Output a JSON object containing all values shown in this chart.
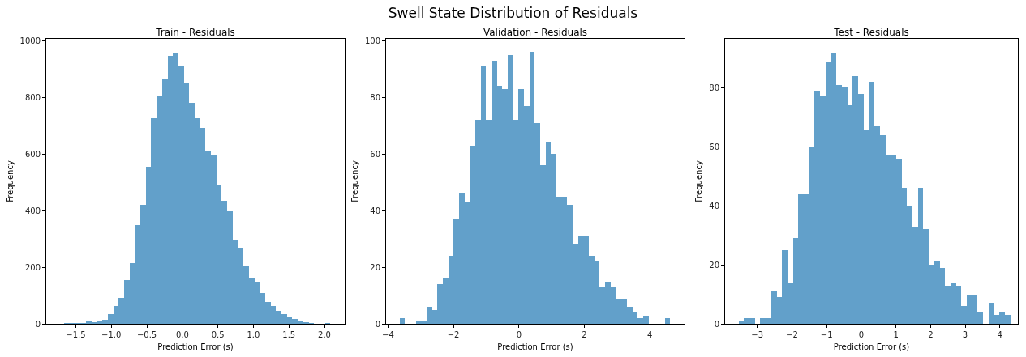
{
  "chart_data": [
    {
      "type": "histogram",
      "subtitle": "Train - Residuals",
      "xlabel": "Prediction Error (s)",
      "ylabel": "Frequency",
      "color": "#62a0ca",
      "bins": [
        -1.661,
        -1.584,
        -1.508,
        -1.431,
        -1.355,
        -1.279,
        -1.202,
        -1.126,
        -1.049,
        -0.973,
        -0.897,
        -0.82,
        -0.744,
        -0.667,
        -0.591,
        -0.515,
        -0.438,
        -0.362,
        -0.285,
        -0.209,
        -0.133,
        -0.056,
        0.02,
        0.097,
        0.173,
        0.249,
        0.326,
        0.402,
        0.479,
        0.555,
        0.631,
        0.708,
        0.784,
        0.861,
        0.937,
        1.013,
        1.09,
        1.166,
        1.243,
        1.319,
        1.395,
        1.472,
        1.548,
        1.625,
        1.701,
        1.777,
        1.854,
        1.93,
        2.007,
        2.083
      ],
      "values": [
        2,
        2,
        2,
        3,
        10,
        6,
        12,
        14,
        34,
        64,
        92,
        154,
        214,
        348,
        421,
        556,
        726,
        808,
        867,
        948,
        959,
        912,
        853,
        781,
        726,
        693,
        610,
        595,
        488,
        436,
        397,
        295,
        269,
        206,
        162,
        148,
        109,
        78,
        62,
        46,
        33,
        27,
        18,
        10,
        5,
        3,
        1,
        0,
        3
      ],
      "xlim": [
        -1.916,
        2.285
      ],
      "ylim": [
        0,
        1007
      ],
      "xticks": [
        {
          "value": -1.5,
          "label": "−1.5"
        },
        {
          "value": -1,
          "label": "−1.0"
        },
        {
          "value": -0.5,
          "label": "−0.5"
        },
        {
          "value": 0,
          "label": "0.0"
        },
        {
          "value": 0.5,
          "label": "0.5"
        },
        {
          "value": 1,
          "label": "1.0"
        },
        {
          "value": 1.5,
          "label": "1.5"
        },
        {
          "value": 2,
          "label": "2.0"
        }
      ],
      "yticks": [
        0,
        200,
        400,
        600,
        800,
        1000
      ]
    },
    {
      "type": "histogram",
      "title": "Swell State Distribution of Residuals",
      "subtitle": "Validation - Residuals",
      "xlabel": "Prediction Error (s)",
      "ylabel": "Frequency",
      "color": "#62a0ca",
      "bins": [
        -3.646,
        -3.481,
        -3.315,
        -3.15,
        -2.985,
        -2.82,
        -2.654,
        -2.489,
        -2.324,
        -2.158,
        -1.993,
        -1.828,
        -1.662,
        -1.497,
        -1.332,
        -1.167,
        -1.001,
        -0.836,
        -0.671,
        -0.505,
        -0.34,
        -0.175,
        -0.009,
        0.156,
        0.321,
        0.487,
        0.652,
        0.817,
        0.982,
        1.148,
        1.313,
        1.478,
        1.644,
        1.809,
        1.974,
        2.14,
        2.305,
        2.47,
        2.635,
        2.801,
        2.966,
        3.131,
        3.297,
        3.462,
        3.627,
        3.793,
        3.958,
        4.123,
        4.288,
        4.454,
        4.619
      ],
      "values": [
        2,
        0,
        0,
        1,
        1,
        6,
        5,
        14,
        16,
        24,
        37,
        46,
        43,
        63,
        72,
        91,
        72,
        93,
        84,
        83,
        95,
        72,
        83,
        77,
        96,
        71,
        56,
        64,
        60,
        45,
        45,
        42,
        28,
        31,
        31,
        24,
        22,
        13,
        15,
        13,
        9,
        9,
        6,
        4,
        2,
        3,
        0,
        0,
        0,
        2
      ],
      "xlim": [
        -4.06,
        5.06
      ],
      "ylim": [
        0,
        100.7
      ],
      "xticks": [
        {
          "value": -4,
          "label": "−4"
        },
        {
          "value": -2,
          "label": "−2"
        },
        0,
        2,
        4
      ],
      "yticks": [
        0,
        20,
        40,
        60,
        80,
        100
      ]
    },
    {
      "type": "histogram",
      "subtitle": "Test - Residuals",
      "xlabel": "Prediction Error (s)",
      "ylabel": "Frequency",
      "color": "#62a0ca",
      "bins": [
        -3.539,
        -3.382,
        -3.225,
        -3.069,
        -2.912,
        -2.755,
        -2.598,
        -2.441,
        -2.285,
        -2.128,
        -1.971,
        -1.814,
        -1.657,
        -1.501,
        -1.344,
        -1.187,
        -1.03,
        -0.873,
        -0.717,
        -0.56,
        -0.403,
        -0.246,
        -0.089,
        0.067,
        0.224,
        0.381,
        0.538,
        0.695,
        0.851,
        1.008,
        1.165,
        1.322,
        1.479,
        1.635,
        1.792,
        1.949,
        2.106,
        2.263,
        2.419,
        2.576,
        2.733,
        2.89,
        3.047,
        3.203,
        3.36,
        3.517,
        3.674,
        3.831,
        3.987,
        4.144,
        4.301
      ],
      "values": [
        1,
        2,
        2,
        0,
        2,
        2,
        11,
        9,
        25,
        14,
        29,
        44,
        44,
        60,
        79,
        77,
        89,
        92,
        81,
        80,
        74,
        84,
        78,
        66,
        82,
        67,
        64,
        57,
        57,
        56,
        46,
        40,
        33,
        46,
        32,
        20,
        21,
        19,
        13,
        14,
        13,
        6,
        10,
        10,
        4,
        0,
        7,
        3,
        4,
        3
      ],
      "xlim": [
        -3.93,
        4.52
      ],
      "ylim": [
        0,
        96.6
      ],
      "xticks": [
        {
          "value": -3,
          "label": "−3"
        },
        {
          "value": -2,
          "label": "−2"
        },
        {
          "value": -1,
          "label": "−1"
        },
        0,
        1,
        2,
        3,
        4
      ],
      "yticks": [
        0,
        20,
        40,
        60,
        80
      ]
    }
  ]
}
